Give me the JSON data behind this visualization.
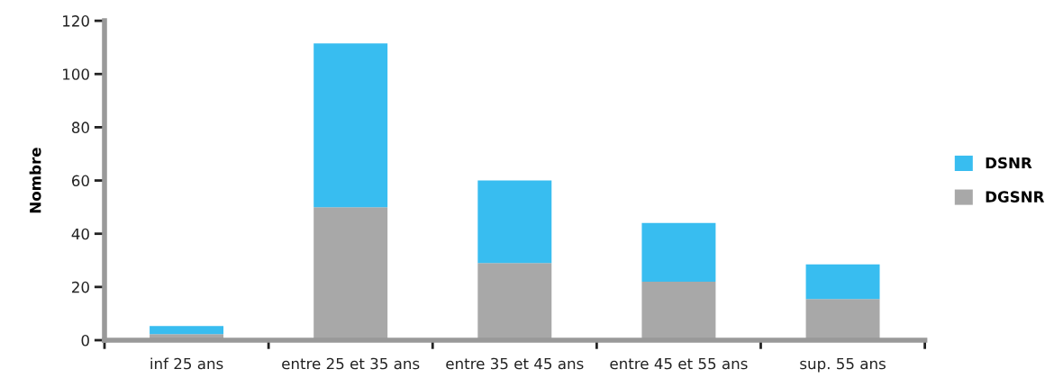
{
  "chart_data": {
    "type": "bar",
    "stacked": true,
    "ylabel": "Nombre",
    "categories": [
      "inf 25 ans",
      "entre 25 et 35 ans",
      "entre 35 et 45 ans",
      "entre 45 et 55 ans",
      "sup. 55 ans"
    ],
    "series": [
      {
        "name": "DGSNR",
        "color": "#a8a8a8",
        "values": [
          2.3,
          50,
          29,
          22,
          15.5
        ]
      },
      {
        "name": "DSNR",
        "color": "#38bdf0",
        "values": [
          3,
          61.5,
          31,
          22,
          13
        ]
      }
    ],
    "ylim": [
      0,
      120
    ],
    "yticks": [
      0,
      20,
      40,
      60,
      80,
      100,
      120
    ],
    "grid": false,
    "legend": "right"
  }
}
